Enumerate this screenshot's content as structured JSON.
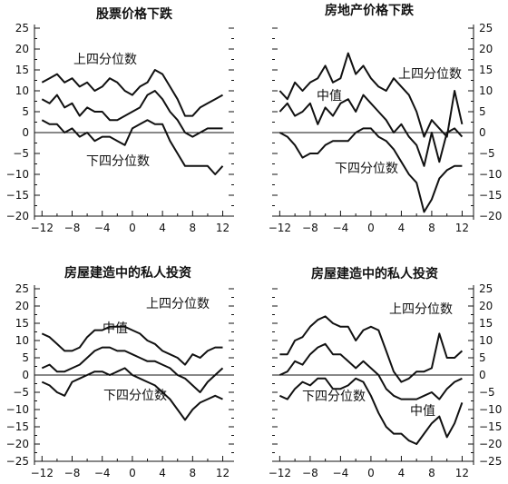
{
  "chart_data": [
    {
      "type": "line",
      "title": "股票价格下跌",
      "xlabel": "",
      "ylabel": "",
      "xlim": [
        -13,
        13.5
      ],
      "ylim": [
        -20,
        25
      ],
      "xticks": [
        -12,
        -8,
        -4,
        0,
        4,
        8,
        12
      ],
      "yticks": [
        25,
        20,
        15,
        10,
        5,
        0,
        -5,
        -10,
        -15,
        -20
      ],
      "y_axis_side": "left",
      "zero_line": true,
      "series": [
        {
          "label_id": "upper",
          "x": [
            -12,
            -11,
            -10,
            -9,
            -8,
            -7,
            -6,
            -5,
            -4,
            -3,
            -2,
            -1,
            0,
            1,
            2,
            3,
            4,
            5,
            6,
            7,
            8,
            9,
            10,
            11,
            12
          ],
          "values": [
            12,
            13,
            14,
            12,
            13,
            11,
            12,
            10,
            11,
            13,
            12,
            10,
            9,
            11,
            12,
            15,
            14,
            11,
            8,
            4,
            4,
            6,
            7,
            8,
            9
          ]
        },
        {
          "label_id": "median",
          "x": [
            -12,
            -11,
            -10,
            -9,
            -8,
            -7,
            -6,
            -5,
            -4,
            -3,
            -2,
            -1,
            0,
            1,
            2,
            3,
            4,
            5,
            6,
            7,
            8,
            9,
            10,
            11,
            12
          ],
          "values": [
            8,
            7,
            9,
            6,
            7,
            4,
            6,
            5,
            5,
            3,
            3,
            4,
            5,
            6,
            9,
            10,
            8,
            5,
            3,
            0,
            -1,
            0,
            1,
            1,
            1
          ]
        },
        {
          "label_id": "lower",
          "x": [
            -12,
            -11,
            -10,
            -9,
            -8,
            -7,
            -6,
            -5,
            -4,
            -3,
            -2,
            -1,
            0,
            1,
            2,
            3,
            4,
            5,
            6,
            7,
            8,
            9,
            10,
            11,
            12
          ],
          "values": [
            3,
            2,
            2,
            0,
            1,
            -1,
            0,
            -2,
            -1,
            -1,
            -2,
            -3,
            1,
            2,
            3,
            2,
            2,
            -2,
            -5,
            -8,
            -8,
            -8,
            -8,
            -10,
            -8
          ]
        }
      ],
      "labels": {
        "upper": "上四分位数",
        "median": "",
        "lower": "下四分位数"
      }
    },
    {
      "type": "line",
      "title": "房地产价格下跌",
      "xlabel": "",
      "ylabel": "",
      "xlim": [
        -13,
        13.5
      ],
      "ylim": [
        -20,
        25
      ],
      "xticks": [
        -12,
        -8,
        -4,
        0,
        4,
        8,
        12
      ],
      "yticks": [
        25,
        20,
        15,
        10,
        5,
        0,
        -5,
        -10,
        -15,
        -20
      ],
      "y_axis_side": "right",
      "zero_line": true,
      "series": [
        {
          "label_id": "upper",
          "x": [
            -12,
            -11,
            -10,
            -9,
            -8,
            -7,
            -6,
            -5,
            -4,
            -3,
            -2,
            -1,
            0,
            1,
            2,
            3,
            4,
            5,
            6,
            7,
            8,
            9,
            10,
            11,
            12
          ],
          "values": [
            10,
            8,
            12,
            10,
            12,
            13,
            16,
            12,
            13,
            19,
            14,
            16,
            13,
            11,
            10,
            13,
            11,
            9,
            5,
            -1,
            3,
            1,
            -1,
            10,
            2
          ]
        },
        {
          "label_id": "median",
          "x": [
            -12,
            -11,
            -10,
            -9,
            -8,
            -7,
            -6,
            -5,
            -4,
            -3,
            -2,
            -1,
            0,
            1,
            2,
            3,
            4,
            5,
            6,
            7,
            8,
            9,
            10,
            11,
            12
          ],
          "values": [
            5,
            7,
            4,
            5,
            7,
            2,
            6,
            4,
            7,
            8,
            5,
            9,
            7,
            5,
            3,
            0,
            2,
            -1,
            -3,
            -8,
            0,
            -7,
            0,
            1,
            -1
          ]
        },
        {
          "label_id": "lower",
          "x": [
            -12,
            -11,
            -10,
            -9,
            -8,
            -7,
            -6,
            -5,
            -4,
            -3,
            -2,
            -1,
            0,
            1,
            2,
            3,
            4,
            5,
            6,
            7,
            8,
            9,
            10,
            11,
            12
          ],
          "values": [
            0,
            -1,
            -3,
            -6,
            -5,
            -5,
            -3,
            -2,
            -2,
            -2,
            0,
            1,
            1,
            -1,
            -2,
            -4,
            -7,
            -10,
            -12,
            -19,
            -16,
            -11,
            -9,
            -8,
            -8
          ]
        }
      ],
      "labels": {
        "upper": "上四分位数",
        "median": "中值",
        "lower": "下四分位数"
      }
    },
    {
      "type": "line",
      "title": "房屋建造中的私人投资",
      "xlabel": "",
      "ylabel": "",
      "xlim": [
        -13,
        13.5
      ],
      "ylim": [
        -25,
        25
      ],
      "xticks": [
        -12,
        -8,
        -4,
        0,
        4,
        8,
        12
      ],
      "yticks": [
        25,
        20,
        15,
        10,
        5,
        0,
        -5,
        -10,
        -15,
        -20,
        -25
      ],
      "y_axis_side": "left",
      "zero_line": true,
      "series": [
        {
          "label_id": "upper",
          "x": [
            -12,
            -11,
            -10,
            -9,
            -8,
            -7,
            -6,
            -5,
            -4,
            -3,
            -2,
            -1,
            0,
            1,
            2,
            3,
            4,
            5,
            6,
            7,
            8,
            9,
            10,
            11,
            12
          ],
          "values": [
            12,
            11,
            9,
            7,
            7,
            8,
            11,
            13,
            13,
            14,
            14,
            14,
            13,
            12,
            10,
            9,
            7,
            6,
            5,
            3,
            6,
            5,
            7,
            8,
            8
          ]
        },
        {
          "label_id": "median",
          "x": [
            -12,
            -11,
            -10,
            -9,
            -8,
            -7,
            -6,
            -5,
            -4,
            -3,
            -2,
            -1,
            0,
            1,
            2,
            3,
            4,
            5,
            6,
            7,
            8,
            9,
            10,
            11,
            12
          ],
          "values": [
            2,
            3,
            1,
            1,
            2,
            3,
            5,
            7,
            8,
            8,
            7,
            7,
            6,
            5,
            4,
            4,
            3,
            2,
            0,
            -1,
            -3,
            -5,
            -2,
            0,
            2
          ]
        },
        {
          "label_id": "lower",
          "x": [
            -12,
            -11,
            -10,
            -9,
            -8,
            -7,
            -6,
            -5,
            -4,
            -3,
            -2,
            -1,
            0,
            1,
            2,
            3,
            4,
            5,
            6,
            7,
            8,
            9,
            10,
            11,
            12
          ],
          "values": [
            -2,
            -3,
            -5,
            -6,
            -2,
            -1,
            0,
            1,
            1,
            0,
            1,
            2,
            0,
            -1,
            -2,
            -3,
            -5,
            -7,
            -10,
            -13,
            -10,
            -8,
            -7,
            -6,
            -7
          ]
        }
      ],
      "labels": {
        "upper": "上四分位数",
        "median": "中值",
        "lower": "下四分位数"
      }
    },
    {
      "type": "line",
      "title": "房屋建造中的私人投资",
      "xlabel": "",
      "ylabel": "",
      "xlim": [
        -13,
        13.5
      ],
      "ylim": [
        -25,
        25
      ],
      "xticks": [
        -12,
        -8,
        -4,
        0,
        4,
        8,
        12
      ],
      "yticks": [
        25,
        20,
        15,
        10,
        5,
        0,
        -5,
        -10,
        -15,
        -20,
        -25
      ],
      "y_axis_side": "right",
      "zero_line": true,
      "series": [
        {
          "label_id": "upper",
          "x": [
            -12,
            -11,
            -10,
            -9,
            -8,
            -7,
            -6,
            -5,
            -4,
            -3,
            -2,
            -1,
            0,
            1,
            2,
            3,
            4,
            5,
            6,
            7,
            8,
            9,
            10,
            11,
            12
          ],
          "values": [
            6,
            6,
            10,
            11,
            14,
            16,
            17,
            15,
            14,
            14,
            10,
            13,
            14,
            13,
            7,
            1,
            -2,
            -1,
            1,
            1,
            2,
            12,
            5,
            5,
            7
          ]
        },
        {
          "label_id": "median",
          "x": [
            -12,
            -11,
            -10,
            -9,
            -8,
            -7,
            -6,
            -5,
            -4,
            -3,
            -2,
            -1,
            0,
            1,
            2,
            3,
            4,
            5,
            6,
            7,
            8,
            9,
            10,
            11,
            12
          ],
          "values": [
            0,
            1,
            4,
            3,
            6,
            8,
            9,
            6,
            6,
            4,
            2,
            4,
            2,
            0,
            -4,
            -6,
            -7,
            -7,
            -7,
            -6,
            -5,
            -7,
            -4,
            -2,
            -1
          ]
        },
        {
          "label_id": "lower",
          "x": [
            -12,
            -11,
            -10,
            -9,
            -8,
            -7,
            -6,
            -5,
            -4,
            -3,
            -2,
            -1,
            0,
            1,
            2,
            3,
            4,
            5,
            6,
            7,
            8,
            9,
            10,
            11,
            12
          ],
          "values": [
            -6,
            -7,
            -4,
            -2,
            -3,
            -1,
            -1,
            -4,
            -4,
            -3,
            -1,
            -2,
            -6,
            -11,
            -15,
            -17,
            -17,
            -19,
            -20,
            -17,
            -14,
            -12,
            -18,
            -14,
            -8
          ]
        }
      ],
      "labels": {
        "upper": "上四分位数",
        "median": "中值",
        "lower": "下四分位数"
      }
    }
  ],
  "colors": {
    "line": "#111111",
    "background": "#ffffff"
  }
}
